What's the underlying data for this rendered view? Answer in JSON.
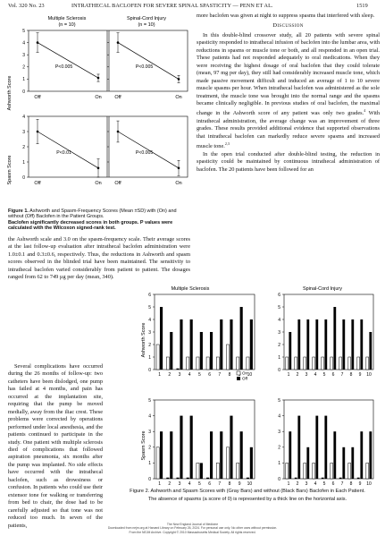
{
  "header": {
    "volume": "Vol. 320   No. 23",
    "title": "INTRATHECAL BACLOFEN FOR SEVERE SPINAL SPASTICITY — PENN ET AL.",
    "page": "1519"
  },
  "figure1": {
    "caption_lead": "Figure 1.",
    "caption_rest": " Ashworth and Spasm-Frequency Scores (Mean ±SD) with (On) and without (Off) Baclofen in the Patient Groups.",
    "caption_line2": "Baclofen significantly decreased scores in both groups. P values were calculated with the Wilcoxon signed-rank test.",
    "col1_title": "Multiple Sclerosis",
    "col1_n": "(n = 10)",
    "col2_title": "Spinal-Cord Injury",
    "col2_n": "(n = 10)",
    "off_label": "Off",
    "on_label": "On",
    "ashworth_label": "Ashworth Score",
    "spasm_label": "Spasm Score",
    "p_a": "P<0.005",
    "p_b": "P<0.005",
    "p_c": "P<0.01",
    "p_d": "P<0.005"
  },
  "chart_data": [
    {
      "type": "line",
      "panel": "Multiple Sclerosis",
      "ylabel": "Ashworth Score",
      "categories": [
        "Off",
        "On"
      ],
      "values": [
        4.0,
        1.1
      ],
      "error": [
        0.8,
        0.3
      ],
      "ylim": [
        0,
        5
      ],
      "annotation": "P<0.005"
    },
    {
      "type": "line",
      "panel": "Spinal-Cord Injury",
      "ylabel": "Ashworth Score",
      "categories": [
        "Off",
        "On"
      ],
      "values": [
        4.0,
        1.0
      ],
      "error": [
        0.8,
        0.3
      ],
      "ylim": [
        0,
        5
      ],
      "annotation": "P<0.005"
    },
    {
      "type": "line",
      "panel": "Multiple Sclerosis",
      "ylabel": "Spasm Score",
      "categories": [
        "Off",
        "On"
      ],
      "values": [
        3.0,
        0.6
      ],
      "error": [
        0.8,
        0.6
      ],
      "ylim": [
        0,
        4
      ],
      "annotation": "P<0.01"
    },
    {
      "type": "line",
      "panel": "Spinal-Cord Injury",
      "ylabel": "Spasm Score",
      "categories": [
        "Off",
        "On"
      ],
      "values": [
        3.0,
        0.6
      ],
      "error": [
        0.7,
        0.5
      ],
      "ylim": [
        0,
        4
      ],
      "annotation": "P<0.005"
    },
    {
      "type": "bar",
      "panel": "Multiple Sclerosis",
      "ylabel": "Ashworth Score",
      "categories": [
        "1",
        "2",
        "3",
        "4",
        "5",
        "6",
        "7",
        "8",
        "9",
        "10"
      ],
      "ylim": [
        0,
        6
      ],
      "series": [
        {
          "name": "On",
          "values": [
            2,
            1,
            0,
            1,
            1,
            1,
            1,
            2,
            1,
            1
          ]
        },
        {
          "name": "Off",
          "values": [
            5,
            3,
            4,
            4,
            3,
            3,
            4,
            4,
            5,
            4
          ]
        }
      ]
    },
    {
      "type": "bar",
      "panel": "Spinal-Cord Injury",
      "ylabel": "Ashworth Score",
      "categories": [
        "1",
        "2",
        "3",
        "4",
        "5",
        "6",
        "7",
        "8",
        "9",
        "10"
      ],
      "ylim": [
        0,
        6
      ],
      "series": [
        {
          "name": "On",
          "values": [
            1,
            1,
            1,
            1,
            1,
            1,
            1,
            1,
            1,
            1
          ]
        },
        {
          "name": "Off",
          "values": [
            3,
            4,
            4,
            4,
            4,
            5,
            4,
            4,
            4,
            3
          ]
        }
      ]
    },
    {
      "type": "bar",
      "panel": "Multiple Sclerosis",
      "ylabel": "Spasm Score",
      "categories": [
        "1",
        "2",
        "3",
        "4",
        "5",
        "6",
        "7",
        "8",
        "9",
        "10"
      ],
      "ylim": [
        0,
        5
      ],
      "series": [
        {
          "name": "On",
          "values": [
            2,
            0,
            0,
            0,
            1,
            0,
            1,
            2,
            1,
            0
          ]
        },
        {
          "name": "Off",
          "values": [
            3,
            3,
            4,
            4,
            1,
            3,
            3,
            4,
            3,
            2
          ]
        }
      ]
    },
    {
      "type": "bar",
      "panel": "Spinal-Cord Injury",
      "ylabel": "Spasm Score",
      "categories": [
        "1",
        "2",
        "3",
        "4",
        "5",
        "6",
        "7",
        "8",
        "9",
        "10"
      ],
      "ylim": [
        0,
        5
      ],
      "series": [
        {
          "name": "On",
          "values": [
            1,
            0,
            1,
            1,
            0,
            1,
            0,
            1,
            0,
            1
          ]
        },
        {
          "name": "Off",
          "values": [
            3,
            4,
            2,
            4,
            4,
            3,
            2,
            2,
            3,
            3
          ]
        }
      ]
    }
  ],
  "left_column": {
    "p1": "the Ashworth scale and 3.0 on the spasm-frequency scale. Their average scores at the last follow-up evaluation after intrathecal baclofen administration were 1.0±0.1 and 0.3±0.6, respectively. Thus, the reductions in Ashworth and spasm scores observed in the blinded trial have been maintained. The sensitivity to intrathecal baclofen varied considerably from patient to patient. The dosages ranged from 62 to 749 µg per day (mean, 340).",
    "p2_a": "Several complications have occurred during the 26 months of follow-up: two catheters have been dislodged, one pump has failed at 4 months, and pain has occurred at the implantation site, requiring that the pump be moved medially, away from the iliac crest. These problems were corrected by operations performed under local anesthesia, and the patients continued to participate in the study. One patient with multiple sclerosis died of complications that followed aspiration pneumonia, six months after the pump was implanted. No side effects have occurred with the intrathecal baclofen, such as drowsiness or confusion. In patients who could use their extensor tone for walking or transferring from bed to chair, the dose had to be carefully adjusted so that tone was not reduced too much. In seven of the patients,"
  },
  "right_column": {
    "top": "more baclofen was given at night to suppress spasms that interfered with sleep.",
    "discussion_heading": "Discussion",
    "d1": "In this double-blind crossover study, all 20 patients with severe spinal spasticity responded to intrathecal infusion of baclofen into the lumbar area, with reductions in spasms or muscle tone or both, and all responded in an open trial. These patients had not responded adequately to oral medications. When they were receiving the highest dosage of oral baclofen that they could tolerate (mean, 97 mg per day), they still had considerably increased muscle tone, which made passive movement difficult and induced an average of 1 to 10 severe muscle spasms per hour. When intrathecal baclofen was administered as the sole treatment, the muscle tone was brought into the normal range and the spasms became clinically negligible. In previous studies of oral baclofen, the maximal change in the Ashworth score of any patient was only two grades.",
    "d1_sup": "4",
    "d1_b": " With intrathecal administration, the average change was an improvement of three grades. These results provided additional evidence that supported observations that intrathecal baclofen can markedly reduce severe spasms and increased muscle tone.",
    "d1_sup2": "2,3",
    "d2": "In the open trial conducted after double-blind testing, the reduction in spasticity could be maintained by continuous intrathecal administration of baclofen. The 20 patients have been followed for an"
  },
  "figure2": {
    "col1_title": "Multiple Sclerosis",
    "col2_title": "Spinal-Cord Injury",
    "ashworth_label": "Ashworth Score",
    "spasm_label": "Spasm Score",
    "legend_on": "On",
    "legend_off": "Off",
    "caption_1": "Figure 2. Ashworth and Spasm Scores with (Gray Bars) and without (Black Bars) Baclofen in Each Patient.",
    "caption_2": "The absence of spasms (a score of 0) is represented by a thick line on the horizontal axis."
  },
  "footer": {
    "l1": "The New England Journal of Medicine",
    "l2": "Downloaded from nejm.org at Harvard Library on February 26, 2024. For personal use only. No other uses without permission.",
    "l3": "From the NEJM Archive. Copyright © 2010 Massachusetts Medical Society. All rights reserved."
  }
}
